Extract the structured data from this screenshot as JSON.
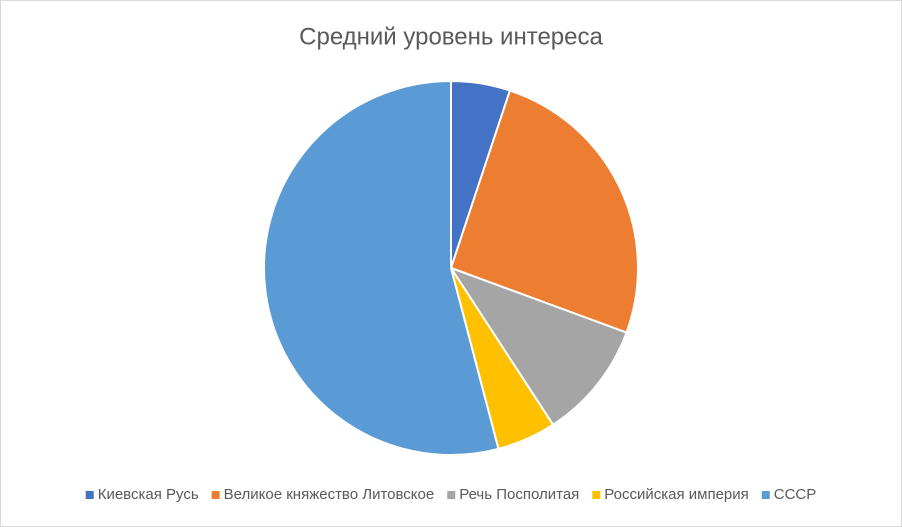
{
  "chart_data": {
    "type": "pie",
    "title": "Средний уровень интереса",
    "categories": [
      "Киевская Русь",
      "Великое княжество Литовское",
      "Речь Посполитая",
      "Российская империя",
      "СССР"
    ],
    "values": [
      5,
      25,
      10,
      5,
      53
    ],
    "colors": [
      "#4472c4",
      "#ed7d31",
      "#a5a5a5",
      "#ffc000",
      "#5b9bd5"
    ],
    "legend": "bottom"
  }
}
